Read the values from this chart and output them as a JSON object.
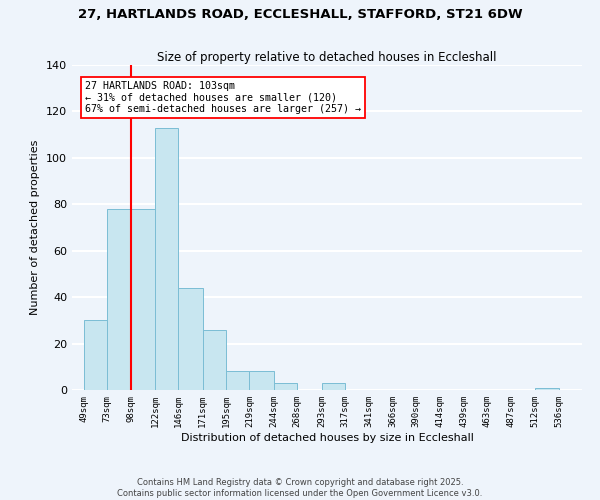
{
  "title": "27, HARTLANDS ROAD, ECCLESHALL, STAFFORD, ST21 6DW",
  "subtitle": "Size of property relative to detached houses in Eccleshall",
  "xlabel": "Distribution of detached houses by size in Eccleshall",
  "ylabel": "Number of detached properties",
  "bar_color": "#c8e6f0",
  "bar_edge_color": "#7bbdd4",
  "bar_left_edges": [
    49,
    73,
    98,
    122,
    146,
    171,
    195,
    219,
    244,
    268,
    293,
    317,
    341,
    366,
    390,
    414,
    439,
    463,
    487,
    512
  ],
  "bar_widths": [
    24,
    25,
    24,
    24,
    25,
    24,
    24,
    25,
    24,
    25,
    24,
    24,
    25,
    24,
    24,
    25,
    24,
    24,
    25,
    24
  ],
  "bar_heights": [
    30,
    78,
    78,
    113,
    44,
    26,
    8,
    8,
    3,
    0,
    3,
    0,
    0,
    0,
    0,
    0,
    0,
    0,
    0,
    1
  ],
  "xtick_labels": [
    "49sqm",
    "73sqm",
    "98sqm",
    "122sqm",
    "146sqm",
    "171sqm",
    "195sqm",
    "219sqm",
    "244sqm",
    "268sqm",
    "293sqm",
    "317sqm",
    "341sqm",
    "366sqm",
    "390sqm",
    "414sqm",
    "439sqm",
    "463sqm",
    "487sqm",
    "512sqm",
    "536sqm"
  ],
  "xtick_positions": [
    49,
    73,
    98,
    122,
    146,
    171,
    195,
    219,
    244,
    268,
    293,
    317,
    341,
    366,
    390,
    414,
    439,
    463,
    487,
    512,
    536
  ],
  "xlim_min": 37,
  "xlim_max": 560,
  "ylim": [
    0,
    140
  ],
  "yticks": [
    0,
    20,
    40,
    60,
    80,
    100,
    120,
    140
  ],
  "property_line_x": 98,
  "annotation_title": "27 HARTLANDS ROAD: 103sqm",
  "annotation_line1": "← 31% of detached houses are smaller (120)",
  "annotation_line2": "67% of semi-detached houses are larger (257) →",
  "footer_line1": "Contains HM Land Registry data © Crown copyright and database right 2025.",
  "footer_line2": "Contains public sector information licensed under the Open Government Licence v3.0.",
  "background_color": "#eef4fb",
  "grid_color": "#ffffff",
  "fig_width": 6.0,
  "fig_height": 5.0
}
